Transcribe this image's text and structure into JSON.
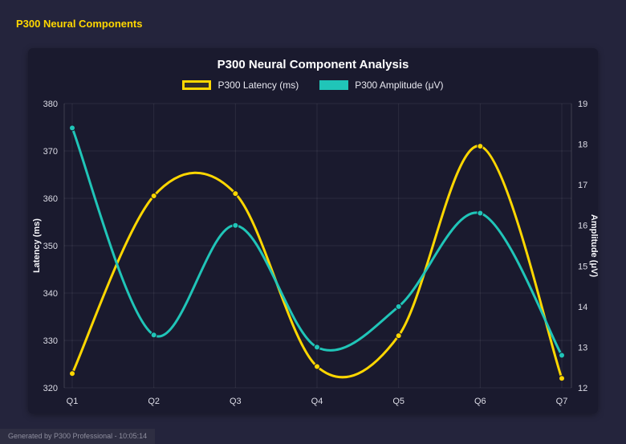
{
  "page": {
    "header": "P300 Neural Components",
    "footer": "Generated by P300 Professional - 10:05:14"
  },
  "colors": {
    "accent": "#ffd700",
    "teal": "#20c5b8",
    "page_bg": "#24243c",
    "panel_bg": "#1a1a2e",
    "grid": "rgba(255,255,255,0.08)",
    "axis_border": "rgba(255,255,255,0.16)",
    "tick_text": "#dcdce6",
    "axis_title_text": "#f5f5fa"
  },
  "chart_data": {
    "type": "line",
    "title": "P300 Neural Component Analysis",
    "categories": [
      "Q1",
      "Q2",
      "Q3",
      "Q4",
      "Q5",
      "Q6",
      "Q7"
    ],
    "series": [
      {
        "name": "P300 Latency (ms)",
        "axis": "left",
        "color": "#ffd700",
        "legend_fill": "rgba(255,215,0,0.10)",
        "values": [
          323,
          360.5,
          361,
          324.5,
          331,
          371,
          322
        ]
      },
      {
        "name": "P300 Amplitude (μV)",
        "axis": "right",
        "color": "#20c5b8",
        "legend_fill": "#20c5b8",
        "values": [
          18.4,
          13.3,
          16.0,
          13.0,
          14.0,
          16.3,
          12.8
        ]
      }
    ],
    "left_axis": {
      "label": "Latency (ms)",
      "min": 320,
      "max": 380,
      "step": 10,
      "ticks": [
        320,
        330,
        340,
        350,
        360,
        370,
        380
      ]
    },
    "right_axis": {
      "label": "Amplitude (μV)",
      "min": 12,
      "max": 19,
      "step": 1,
      "ticks": [
        12,
        13,
        14,
        15,
        16,
        17,
        18,
        19
      ]
    },
    "legend_position": "top",
    "grid": true,
    "smooth": true
  }
}
